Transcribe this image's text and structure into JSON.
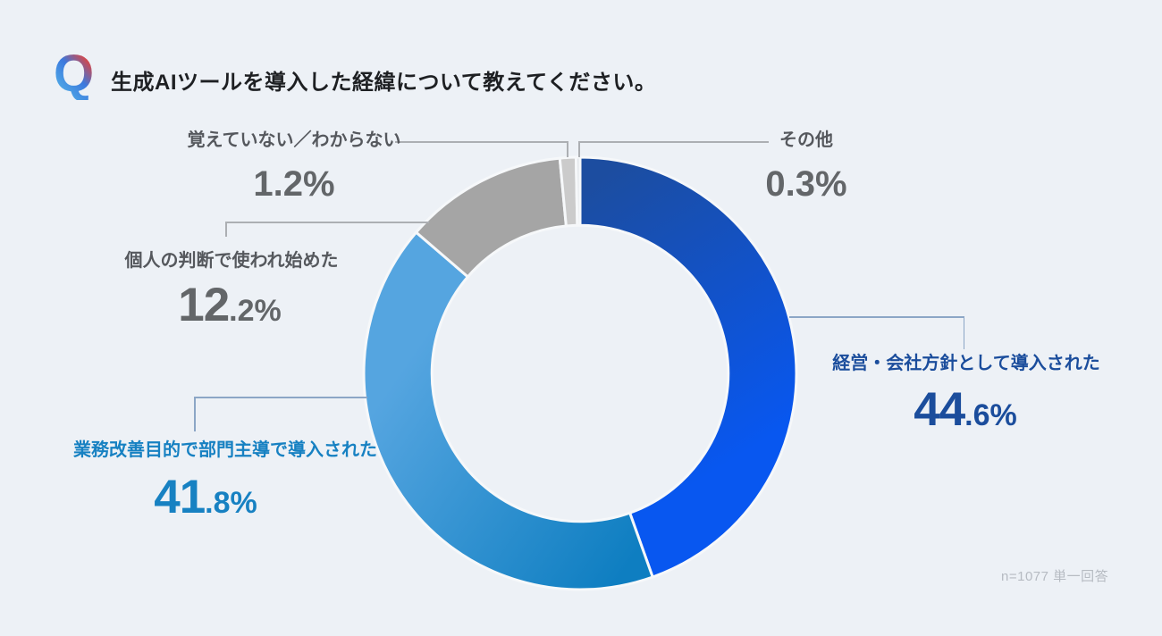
{
  "header": {
    "q_mark": "Q",
    "title": "生成AIツールを導入した経緯について教えてください。"
  },
  "chart_data": {
    "type": "pie",
    "subtype": "donut",
    "title": "生成AIツールを導入した経緯について教えてください。",
    "start_angle_deg": 0,
    "direction": "clockwise",
    "inner_radius_ratio": 0.685,
    "categories": [
      "経営・会社方針として導入された",
      "業務改善目的で部門主導で導入された",
      "個人の判断で使われ始めた",
      "覚えていない／わからない",
      "その他"
    ],
    "values": [
      44.6,
      41.8,
      12.2,
      1.2,
      0.3
    ],
    "segments": [
      {
        "label": "経営・会社方針として導入された",
        "value": 44.6,
        "color_from": "#1C4DA0",
        "color_to": "#0857F0"
      },
      {
        "label": "業務改善目的で部門主導で導入された",
        "value": 41.8,
        "color_from": "#0E7EC1",
        "color_to": "#55A5E0"
      },
      {
        "label": "個人の判断で使われ始めた",
        "value": 12.2,
        "color_from": "#A5A5A5",
        "color_to": "#A5A5A5"
      },
      {
        "label": "覚えていない／わからない",
        "value": 1.2,
        "color_from": "#CBCBCB",
        "color_to": "#CBCBCB"
      },
      {
        "label": "その他",
        "value": 0.3,
        "color_from": "#E2E6EA",
        "color_to": "#E2E6EA"
      }
    ],
    "sample_note": "n=1077 単一回答"
  },
  "callouts": {
    "keiei": {
      "main": "44",
      "sub": ".6%"
    },
    "gyomu": {
      "main": "41",
      "sub": ".8%"
    },
    "kojin": {
      "main": "12",
      "sub": ".2%"
    },
    "oboete": {
      "pct": "1.2%"
    },
    "sonota": {
      "pct": "0.3%"
    }
  },
  "colors": {
    "background": "#EDF1F6",
    "title_text": "#1E2023",
    "gray_label": "#55585D",
    "blue_dark_label": "#1B4D9C",
    "blue_mid_label": "#1781C2",
    "leader_gray": "#ACAFB3",
    "leader_blue": "#8CA6C6",
    "segment_separator": "#F6F8FA",
    "footnote_text": "#B6BBC2"
  },
  "footnote": "n=1077 単一回答"
}
